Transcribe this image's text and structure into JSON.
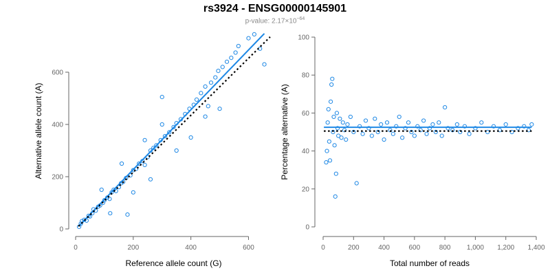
{
  "title": "rs3924 - ENSG00000145901",
  "subtitle": {
    "prefix": "p-value: ",
    "mantissa": "2.17",
    "times": "×10",
    "exponent": "−64"
  },
  "colors": {
    "points": "#1e88e5",
    "fit_line": "#1e88e5",
    "reference_line": "#000000",
    "axis": "#666666",
    "subtitle": "#888888"
  },
  "chart_data": [
    {
      "type": "scatter",
      "xlabel": "Reference allele count (G)",
      "ylabel": "Alternative allele count (A)",
      "xlim": [
        0,
        680
      ],
      "ylim": [
        0,
        750
      ],
      "xticks": [
        0,
        200,
        400,
        600
      ],
      "xtick_labels": [
        "0",
        "200",
        "400",
        "600"
      ],
      "yticks": [
        0,
        200,
        400,
        600
      ],
      "ytick_labels": [
        "0",
        "200",
        "400",
        "600"
      ],
      "grid": false,
      "series": [
        {
          "values": [
            [
              12,
              8
            ],
            [
              18,
              20
            ],
            [
              22,
              30
            ],
            [
              30,
              35
            ],
            [
              38,
              32
            ],
            [
              45,
              50
            ],
            [
              50,
              48
            ],
            [
              58,
              60
            ],
            [
              62,
              75
            ],
            [
              70,
              70
            ],
            [
              78,
              85
            ],
            [
              85,
              90
            ],
            [
              95,
              100
            ],
            [
              100,
              110
            ],
            [
              110,
              120
            ],
            [
              118,
              115
            ],
            [
              125,
              140
            ],
            [
              132,
              150
            ],
            [
              140,
              145
            ],
            [
              150,
              160
            ],
            [
              158,
              175
            ],
            [
              165,
              180
            ],
            [
              175,
              195
            ],
            [
              180,
              55
            ],
            [
              190,
              205
            ],
            [
              200,
              225
            ],
            [
              210,
              230
            ],
            [
              220,
              250
            ],
            [
              232,
              260
            ],
            [
              240,
              245
            ],
            [
              250,
              275
            ],
            [
              260,
              300
            ],
            [
              270,
              310
            ],
            [
              280,
              320
            ],
            [
              295,
              340
            ],
            [
              300,
              505
            ],
            [
              310,
              355
            ],
            [
              325,
              370
            ],
            [
              340,
              390
            ],
            [
              350,
              405
            ],
            [
              365,
              420
            ],
            [
              380,
              440
            ],
            [
              395,
              460
            ],
            [
              410,
              475
            ],
            [
              420,
              495
            ],
            [
              435,
              520
            ],
            [
              450,
              545
            ],
            [
              460,
              470
            ],
            [
              470,
              560
            ],
            [
              485,
              580
            ],
            [
              495,
              605
            ],
            [
              510,
              620
            ],
            [
              525,
              640
            ],
            [
              540,
              655
            ],
            [
              555,
              675
            ],
            [
              565,
              700
            ],
            [
              600,
              730
            ],
            [
              620,
              745
            ],
            [
              640,
              690
            ],
            [
              655,
              630
            ],
            [
              200,
              140
            ],
            [
              260,
              190
            ],
            [
              160,
              250
            ],
            [
              120,
              60
            ],
            [
              90,
              150
            ],
            [
              400,
              350
            ],
            [
              350,
              300
            ],
            [
              450,
              430
            ],
            [
              500,
              460
            ],
            [
              300,
              400
            ],
            [
              240,
              340
            ]
          ]
        }
      ],
      "fit_line": {
        "x": [
          10,
          655
        ],
        "y": [
          10,
          748
        ]
      },
      "reference_line": {
        "x": [
          10,
          675
        ],
        "y": [
          10,
          735
        ]
      }
    },
    {
      "type": "scatter",
      "xlabel": "Total number of reads",
      "ylabel": "Percentage alternative (A)",
      "xlim": [
        0,
        1400
      ],
      "ylim": [
        0,
        100
      ],
      "xticks": [
        0,
        200,
        400,
        600,
        800,
        1000,
        1200,
        1400
      ],
      "xtick_labels": [
        "0",
        "200",
        "400",
        "600",
        "800",
        "1,000",
        "1,200",
        "1,400"
      ],
      "yticks": [
        0,
        20,
        40,
        60,
        80,
        100
      ],
      "ytick_labels": [
        "0",
        "20",
        "40",
        "60",
        "80",
        "100"
      ],
      "grid": false,
      "series": [
        {
          "values": [
            [
              20,
              34
            ],
            [
              25,
              40
            ],
            [
              30,
              55
            ],
            [
              35,
              62
            ],
            [
              40,
              45
            ],
            [
              45,
              35
            ],
            [
              50,
              66
            ],
            [
              55,
              75
            ],
            [
              60,
              78
            ],
            [
              65,
              50
            ],
            [
              70,
              58
            ],
            [
              75,
              43
            ],
            [
              80,
              16
            ],
            [
              85,
              28
            ],
            [
              90,
              60
            ],
            [
              95,
              52
            ],
            [
              100,
              48
            ],
            [
              110,
              57
            ],
            [
              120,
              47
            ],
            [
              130,
              55
            ],
            [
              140,
              51
            ],
            [
              150,
              46
            ],
            [
              160,
              54
            ],
            [
              180,
              58
            ],
            [
              200,
              50
            ],
            [
              220,
              23
            ],
            [
              240,
              53
            ],
            [
              260,
              49
            ],
            [
              280,
              56
            ],
            [
              300,
              52
            ],
            [
              320,
              48
            ],
            [
              340,
              57
            ],
            [
              360,
              50
            ],
            [
              380,
              54
            ],
            [
              400,
              46
            ],
            [
              420,
              55
            ],
            [
              440,
              51
            ],
            [
              460,
              49
            ],
            [
              480,
              53
            ],
            [
              500,
              58
            ],
            [
              520,
              47
            ],
            [
              540,
              52
            ],
            [
              560,
              55
            ],
            [
              580,
              50
            ],
            [
              600,
              48
            ],
            [
              620,
              53
            ],
            [
              640,
              51
            ],
            [
              660,
              56
            ],
            [
              680,
              49
            ],
            [
              700,
              52
            ],
            [
              720,
              54
            ],
            [
              740,
              50
            ],
            [
              760,
              55
            ],
            [
              780,
              48
            ],
            [
              800,
              63
            ],
            [
              820,
              52
            ],
            [
              850,
              51
            ],
            [
              880,
              54
            ],
            [
              900,
              50
            ],
            [
              930,
              53
            ],
            [
              960,
              49
            ],
            [
              1000,
              52
            ],
            [
              1040,
              55
            ],
            [
              1080,
              50
            ],
            [
              1120,
              53
            ],
            [
              1160,
              51
            ],
            [
              1200,
              54
            ],
            [
              1240,
              50
            ],
            [
              1280,
              52
            ],
            [
              1320,
              53
            ],
            [
              1350,
              51
            ],
            [
              1370,
              54
            ]
          ]
        }
      ],
      "fit_line": {
        "x": [
          5,
          1370
        ],
        "y": [
          52.5,
          52.5
        ]
      },
      "reference_line": {
        "x": [
          5,
          1370
        ],
        "y": [
          50.5,
          50.5
        ]
      }
    }
  ]
}
